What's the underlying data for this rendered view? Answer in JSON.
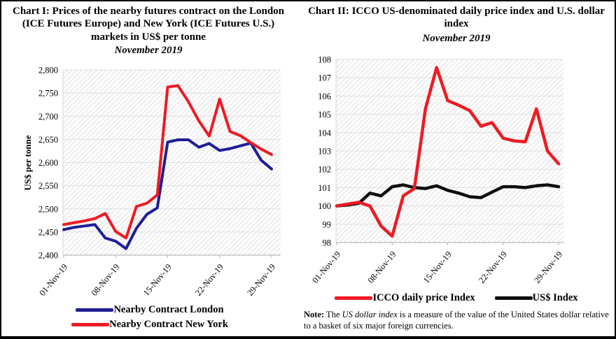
{
  "chart_data": [
    {
      "id": "chart1",
      "type": "line",
      "title": "Chart I: Prices of the nearby futures contract on the London (ICE Futures Europe) and New York (ICE Futures U.S.) markets in US$ per tonne",
      "subtitle": "November 2019",
      "xlabel": "",
      "ylabel": "US$ per tonne",
      "ylim": [
        2400,
        2800
      ],
      "ytick_step": 50,
      "ytick_format": "comma",
      "grid": "horizontal",
      "background": "diagonal-hatch",
      "legend_position": "bottom-stacked",
      "x_tick_labels": [
        "01-Nov-19",
        "08-Nov-19",
        "15-Nov-19",
        "22-Nov-19",
        "29-Nov-19"
      ],
      "x_tick_positions": [
        0,
        5,
        10,
        15,
        20
      ],
      "series": [
        {
          "name": "Nearby Contract London",
          "color": "#1F1E96",
          "values": [
            2455,
            2460,
            2463,
            2466,
            2437,
            2430,
            2414,
            2458,
            2488,
            2502,
            2644,
            2649,
            2649,
            2633,
            2641,
            2626,
            2630,
            2636,
            2642,
            2605,
            2586
          ]
        },
        {
          "name": "Nearby Contract New York",
          "color": "#ED1B23",
          "values": [
            2466,
            2470,
            2474,
            2479,
            2490,
            2451,
            2437,
            2505,
            2512,
            2530,
            2763,
            2766,
            2731,
            2690,
            2657,
            2737,
            2667,
            2658,
            2643,
            2629,
            2617
          ]
        }
      ]
    },
    {
      "id": "chart2",
      "type": "line",
      "title": "Chart II: ICCO US-denominated daily price index and U.S. dollar index",
      "subtitle": "November 2019",
      "xlabel": "",
      "ylabel": "",
      "ylim": [
        98,
        108
      ],
      "ytick_step": 1,
      "ytick_format": "plain",
      "grid": "horizontal",
      "background": "diagonal-hatch",
      "legend_position": "bottom-row",
      "x_tick_labels": [
        "01-Nov-19",
        "08-Nov-19",
        "15-Nov-19",
        "22-Nov-19",
        "29-Nov-19"
      ],
      "x_tick_positions": [
        0,
        5,
        10,
        15,
        20
      ],
      "series": [
        {
          "name": "US$ Index",
          "color": "#0E0E0E",
          "values": [
            100.0,
            100.05,
            100.15,
            100.7,
            100.55,
            101.05,
            101.15,
            101.0,
            100.95,
            101.1,
            100.85,
            100.7,
            100.5,
            100.45,
            100.75,
            101.05,
            101.05,
            101.0,
            101.1,
            101.15,
            101.05
          ]
        },
        {
          "name": "ICCO daily price Index",
          "color": "#ED1B23",
          "values": [
            100.0,
            100.1,
            100.2,
            100.0,
            98.9,
            98.35,
            100.55,
            100.95,
            105.3,
            107.55,
            105.75,
            105.5,
            105.2,
            104.35,
            104.55,
            103.7,
            103.55,
            103.5,
            105.3,
            103.0,
            102.3
          ]
        }
      ]
    }
  ],
  "legend1": {
    "item1": "Nearby Contract London",
    "item2": "Nearby Contract New York"
  },
  "legend2": {
    "item1": "ICCO daily price Index",
    "item2": "US$ Index"
  },
  "note": {
    "label": "Note:",
    "before_italic": " The ",
    "italic": "US dollar index",
    "after_italic": " is a measure of the value of the United States dollar relative to a basket of six major foreign currencies."
  }
}
